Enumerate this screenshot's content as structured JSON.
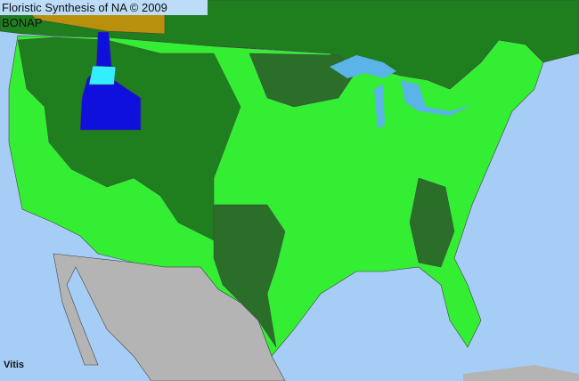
{
  "header": {
    "title": "Floristic Synthesis of NA © 2009 BONAP"
  },
  "map": {
    "taxon": "Vitis",
    "colors": {
      "ocean": "#a6cdf5",
      "lakes": "#5ab4e8",
      "present_state": "#1f7f1f",
      "present_county": "#33ee33",
      "native_dark": "#2a6e2a",
      "not_present": "#b4b4b4",
      "canada_yellow": "#b8900c",
      "idaho_blue": "#1010dd",
      "idaho_cyan": "#33eeff",
      "border": "#444444"
    }
  }
}
